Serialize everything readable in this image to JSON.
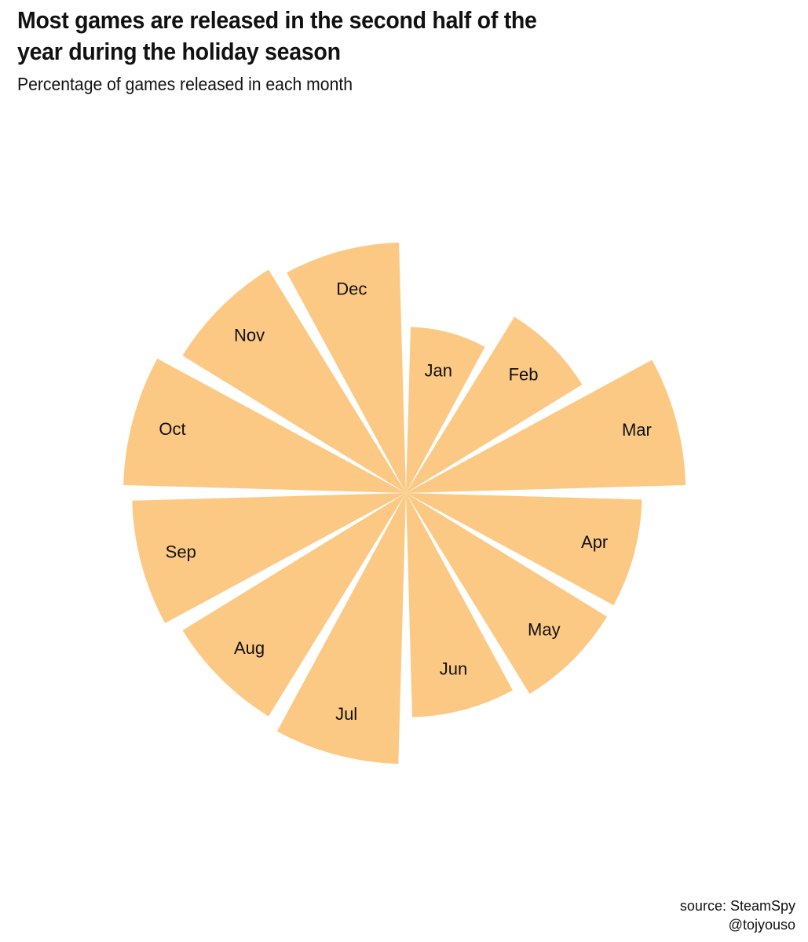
{
  "header": {
    "title": "Most games are released in the second half of the year during the holiday season",
    "subtitle": "Percentage of games released in each month"
  },
  "caption": {
    "source": "source: SteamSpy",
    "author": "@tojyouso"
  },
  "colors": {
    "wedge_fill": "#FCC985",
    "background": "#FFFFFF",
    "text": "#111111"
  },
  "chart_data": {
    "type": "polar-bar",
    "title": "Most games are released in the second half of the year during the holiday season",
    "subtitle": "Percentage of games released in each month",
    "categories": [
      "Jan",
      "Feb",
      "Mar",
      "Apr",
      "May",
      "Jun",
      "Jul",
      "Aug",
      "Sep",
      "Oct",
      "Nov",
      "Dec"
    ],
    "values": [
      5.7,
      7.1,
      9.6,
      8.1,
      8.1,
      7.7,
      9.3,
      9.0,
      9.4,
      9.7,
      9.0,
      8.6
    ],
    "value_unit": "percent",
    "grid": false,
    "legend": "none"
  }
}
